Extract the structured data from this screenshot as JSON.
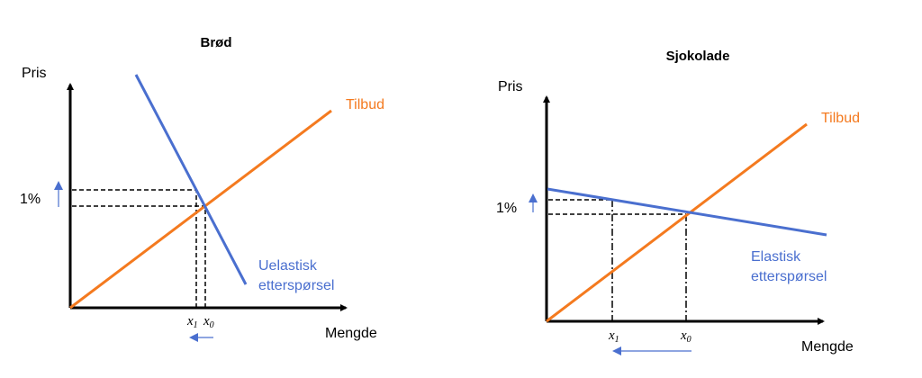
{
  "colors": {
    "supply": "#f47a1f",
    "demand": "#4a6fcf",
    "axis": "#000000"
  },
  "diagrams": [
    {
      "title": "Brød",
      "y_axis_label": "Pris",
      "x_axis_label": "Mengde",
      "supply_label": "Tilbud",
      "demand_label_line1": "Uelastisk",
      "demand_label_line2": "etterspørsel",
      "price_change_label": "1%",
      "x1_label": "x",
      "x1_sub": "1",
      "x0_label": "x",
      "x0_sub": "0"
    },
    {
      "title": "Sjokolade",
      "y_axis_label": "Pris",
      "x_axis_label": "Mengde",
      "supply_label": "Tilbud",
      "demand_label_line1": "Elastisk",
      "demand_label_line2": "etterspørsel",
      "price_change_label": "1%",
      "x1_label": "x",
      "x1_sub": "1",
      "x0_label": "x",
      "x0_sub": "0"
    }
  ]
}
